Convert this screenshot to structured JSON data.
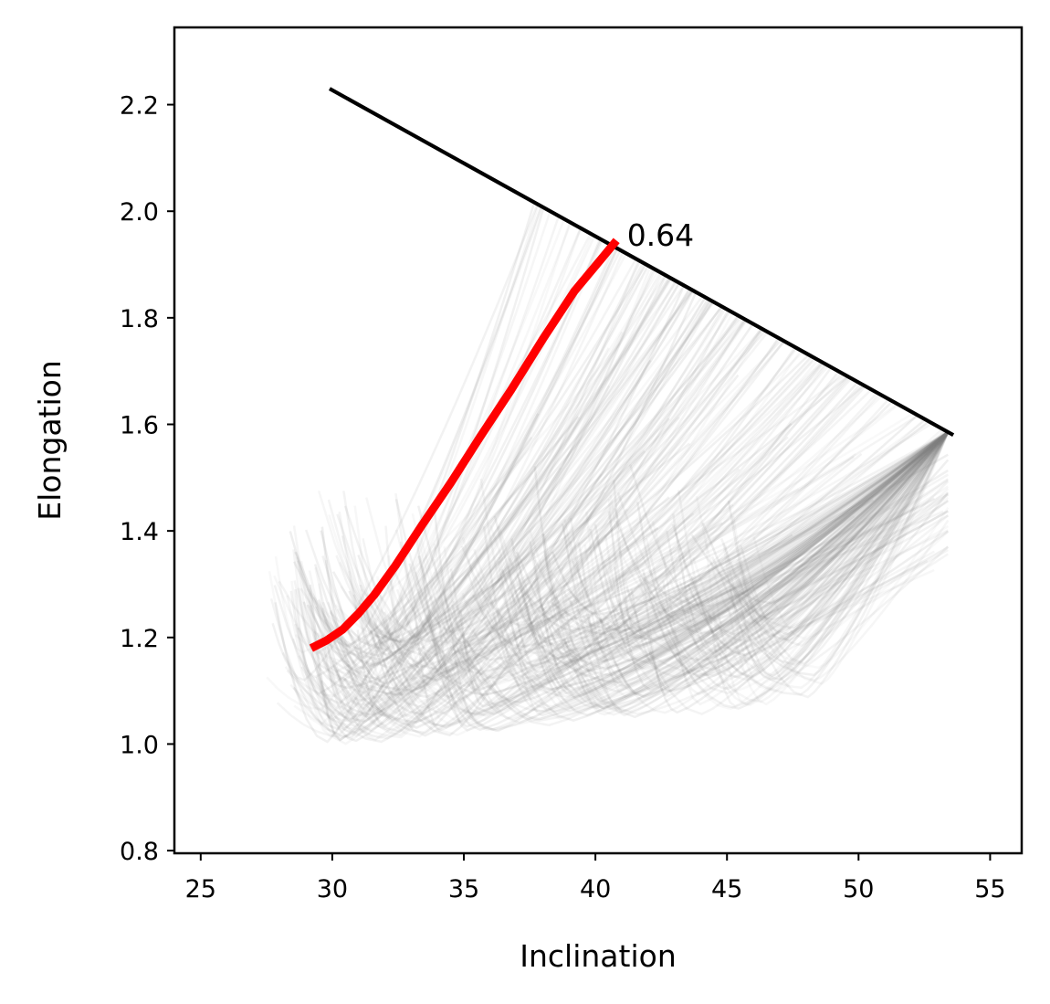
{
  "chart_data": {
    "type": "line",
    "title": "",
    "xlabel": "Inclination",
    "ylabel": "Elongation",
    "xlim": [
      24,
      56.2
    ],
    "ylim": [
      0.795,
      2.345
    ],
    "xticks": [
      25,
      30,
      35,
      40,
      45,
      50,
      55
    ],
    "xtick_labels": [
      "25",
      "30",
      "35",
      "40",
      "45",
      "50",
      "55"
    ],
    "yticks": [
      0.8,
      1.0,
      1.2,
      1.4,
      1.6,
      1.8,
      2.0,
      2.2
    ],
    "ytick_labels": [
      "0.8",
      "1.0",
      "1.2",
      "1.4",
      "1.6",
      "1.8",
      "2.0",
      "2.2"
    ],
    "grid": false,
    "legend": "none",
    "colors": {
      "boundary": "#000000",
      "highlight": "#ff0000",
      "ensemble": "#808080"
    },
    "series": [
      {
        "role": "boundary",
        "x": [
          29.9,
          53.6
        ],
        "y": [
          2.23,
          1.58
        ]
      },
      {
        "role": "highlight",
        "x": [
          29.2,
          29.8,
          30.4,
          31.0,
          31.6,
          32.4,
          33.4,
          34.5,
          35.6,
          36.8,
          38.0,
          39.2,
          40.3,
          40.8
        ],
        "y": [
          1.18,
          1.195,
          1.215,
          1.245,
          1.28,
          1.335,
          1.41,
          1.49,
          1.575,
          1.665,
          1.76,
          1.85,
          1.915,
          1.945
        ]
      }
    ],
    "ensemble": {
      "description_count": 360,
      "x_start_range": [
        27.5,
        51.5
      ],
      "y_min_range": [
        1.0,
        1.2
      ]
    },
    "annotations": [
      {
        "text": "0.64",
        "x": 41.2,
        "y": 1.935
      }
    ]
  }
}
